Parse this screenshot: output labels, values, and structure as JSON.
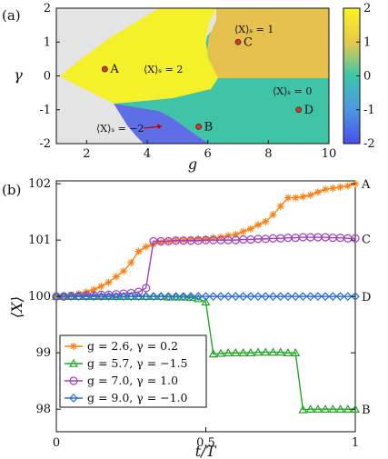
{
  "panel_a": {
    "label": "(a)",
    "xlabel": "g",
    "ylabel": "γ",
    "x_ticks": [
      "2",
      "4",
      "6",
      "8",
      "10"
    ],
    "y_ticks": [
      "2",
      "1",
      "0",
      "-1",
      "-2"
    ],
    "colorbar_ticks": [
      "2",
      "1",
      "0",
      "-1",
      "-2"
    ],
    "region_labels": {
      "r2": "⟨X⟩ₛ = 2",
      "r1": "⟨X⟩ₛ = 1",
      "r0": "⟨X⟩ₛ = 0",
      "rm2": "⟨X⟩ₛ = −2"
    },
    "points": [
      {
        "label": "A",
        "g": 2.6,
        "gamma": 0.2
      },
      {
        "label": "B",
        "g": 5.7,
        "gamma": -1.5
      },
      {
        "label": "C",
        "g": 7.0,
        "gamma": 1.0
      },
      {
        "label": "D",
        "g": 9.0,
        "gamma": -1.0
      }
    ],
    "colors": {
      "bg": "#e4e4e4",
      "yellow": "#f4f02a",
      "orange": "#e6c14d",
      "teal": "#3fc4a8",
      "blue": "#5e6fe6"
    }
  },
  "panel_b": {
    "label": "(b)",
    "xlabel": "t/T",
    "ylabel": "⟨X⟩",
    "x_ticks": [
      "0",
      "0.5",
      "1"
    ],
    "y_ticks": [
      "102",
      "101",
      "100",
      "99",
      "98"
    ],
    "end_labels": [
      "A",
      "C",
      "D",
      "B"
    ]
  },
  "chart_data": [
    {
      "type": "heatmap",
      "xlabel": "g",
      "ylabel": "γ",
      "xlim": [
        1,
        10
      ],
      "ylim": [
        -2,
        2
      ],
      "colorbar_range": [
        -2,
        2
      ],
      "regions": [
        {
          "value": 2,
          "label": "⟨X⟩ₛ = 2"
        },
        {
          "value": 1,
          "label": "⟨X⟩ₛ = 1"
        },
        {
          "value": 0,
          "label": "⟨X⟩ₛ = 0"
        },
        {
          "value": -2,
          "label": "⟨X⟩ₛ = −2"
        }
      ],
      "points": [
        {
          "label": "A",
          "x": 2.6,
          "y": 0.2
        },
        {
          "label": "B",
          "x": 5.7,
          "y": -1.5
        },
        {
          "label": "C",
          "x": 7.0,
          "y": 1.0
        },
        {
          "label": "D",
          "x": 9.0,
          "y": -1.0
        }
      ]
    },
    {
      "type": "line",
      "xlabel": "t/T",
      "ylabel": "⟨X⟩",
      "xlim": [
        0,
        1
      ],
      "ylim": [
        97.6,
        102.05
      ],
      "legend_position": "bottom-left",
      "grid": false,
      "series": [
        {
          "name": "g = 2.6, γ = 0.2",
          "color": "#ff7f0e",
          "marker": "star",
          "x": [
            0,
            0.025,
            0.05,
            0.075,
            0.1,
            0.125,
            0.15,
            0.175,
            0.2,
            0.225,
            0.25,
            0.275,
            0.3,
            0.325,
            0.35,
            0.375,
            0.4,
            0.425,
            0.45,
            0.475,
            0.5,
            0.525,
            0.55,
            0.575,
            0.6,
            0.625,
            0.65,
            0.675,
            0.7,
            0.725,
            0.75,
            0.775,
            0.8,
            0.825,
            0.85,
            0.875,
            0.9,
            0.925,
            0.95,
            0.975,
            1.0
          ],
          "y": [
            100.0,
            100.0,
            100.02,
            100.05,
            100.08,
            100.12,
            100.18,
            100.25,
            100.35,
            100.45,
            100.6,
            100.8,
            100.88,
            100.93,
            100.96,
            100.98,
            101.0,
            101.0,
            101.01,
            101.02,
            101.02,
            101.04,
            101.05,
            101.08,
            101.1,
            101.15,
            101.2,
            101.27,
            101.33,
            101.45,
            101.6,
            101.75,
            101.75,
            101.77,
            101.8,
            101.85,
            101.9,
            101.92,
            101.94,
            101.96,
            102.0
          ]
        },
        {
          "name": "g = 5.7, γ = −1.5",
          "color": "#22a822",
          "marker": "triangle",
          "x": [
            0,
            0.025,
            0.05,
            0.075,
            0.1,
            0.125,
            0.15,
            0.175,
            0.2,
            0.225,
            0.25,
            0.275,
            0.3,
            0.325,
            0.35,
            0.375,
            0.4,
            0.425,
            0.45,
            0.475,
            0.5,
            0.525,
            0.55,
            0.575,
            0.6,
            0.625,
            0.65,
            0.675,
            0.7,
            0.725,
            0.75,
            0.775,
            0.8,
            0.825,
            0.85,
            0.875,
            0.9,
            0.925,
            0.95,
            0.975,
            1.0
          ],
          "y": [
            100.0,
            100.0,
            100.0,
            100.0,
            100.0,
            100.0,
            100.0,
            100.0,
            100.0,
            100.0,
            100.0,
            100.0,
            100.0,
            100.0,
            100.0,
            99.99,
            99.99,
            99.99,
            99.98,
            99.96,
            99.9,
            98.98,
            98.99,
            99.0,
            99.0,
            99.0,
            99.0,
            99.01,
            99.01,
            99.01,
            99.01,
            99.0,
            99.0,
            97.99,
            98.0,
            98.0,
            98.0,
            98.0,
            98.0,
            98.0,
            98.0
          ]
        },
        {
          "name": "g = 7.0, γ = 1.0",
          "color": "#a040c0",
          "marker": "circle",
          "x": [
            0,
            0.025,
            0.05,
            0.075,
            0.1,
            0.125,
            0.15,
            0.175,
            0.2,
            0.225,
            0.25,
            0.275,
            0.3,
            0.325,
            0.35,
            0.375,
            0.4,
            0.425,
            0.45,
            0.475,
            0.5,
            0.525,
            0.55,
            0.575,
            0.6,
            0.625,
            0.65,
            0.675,
            0.7,
            0.725,
            0.75,
            0.775,
            0.8,
            0.825,
            0.85,
            0.875,
            0.9,
            0.925,
            0.95,
            0.975,
            1.0
          ],
          "y": [
            100.0,
            100.0,
            100.01,
            100.01,
            100.02,
            100.02,
            100.03,
            100.03,
            100.04,
            100.05,
            100.06,
            100.08,
            100.15,
            100.98,
            100.98,
            100.98,
            100.99,
            100.99,
            100.99,
            100.99,
            101.0,
            101.0,
            101.0,
            101.0,
            101.0,
            101.01,
            101.01,
            101.02,
            101.02,
            101.03,
            101.03,
            101.04,
            101.04,
            101.05,
            101.05,
            101.05,
            101.05,
            101.04,
            101.04,
            101.03,
            101.03
          ]
        },
        {
          "name": "g = 9.0, γ = −1.0",
          "color": "#2a6fdb",
          "marker": "diamond",
          "x": [
            0,
            0.025,
            0.05,
            0.075,
            0.1,
            0.125,
            0.15,
            0.175,
            0.2,
            0.225,
            0.25,
            0.275,
            0.3,
            0.325,
            0.35,
            0.375,
            0.4,
            0.425,
            0.45,
            0.475,
            0.5,
            0.525,
            0.55,
            0.575,
            0.6,
            0.625,
            0.65,
            0.675,
            0.7,
            0.725,
            0.75,
            0.775,
            0.8,
            0.825,
            0.85,
            0.875,
            0.9,
            0.925,
            0.95,
            0.975,
            1.0
          ],
          "y": [
            100.0,
            100.0,
            100.0,
            100.0,
            100.0,
            100.0,
            100.0,
            100.0,
            100.0,
            100.0,
            100.0,
            100.0,
            100.0,
            100.0,
            100.0,
            100.0,
            100.0,
            100.0,
            100.0,
            100.0,
            100.0,
            100.0,
            100.0,
            100.0,
            100.0,
            100.0,
            100.0,
            100.0,
            100.0,
            100.0,
            100.0,
            100.0,
            100.0,
            100.0,
            100.0,
            100.0,
            100.0,
            100.0,
            100.0,
            100.0,
            100.0
          ]
        }
      ]
    }
  ]
}
